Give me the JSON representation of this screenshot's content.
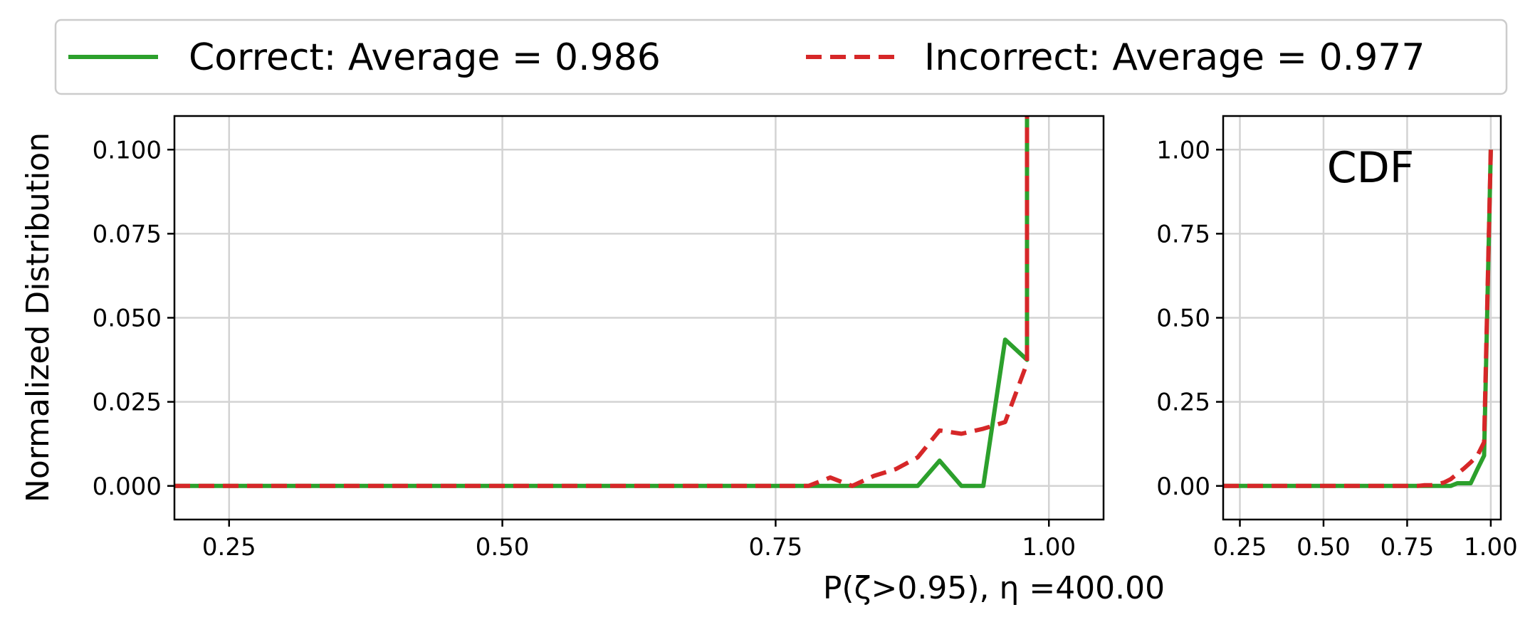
{
  "chart_data": [
    {
      "type": "line",
      "title": "",
      "xlabel": "P(ζ>0.95), η =400.00",
      "ylabel": "Normalized Distribution",
      "xlim": [
        0.2,
        1.05
      ],
      "ylim": [
        -0.01,
        0.11
      ],
      "xticks": [
        0.25,
        0.5,
        0.75,
        1.0
      ],
      "xtick_labels": [
        "0.25",
        "0.50",
        "0.75",
        "1.00"
      ],
      "yticks": [
        0.0,
        0.025,
        0.05,
        0.075,
        0.1
      ],
      "ytick_labels": [
        "0.000",
        "0.025",
        "0.050",
        "0.075",
        "0.100"
      ],
      "grid": true,
      "legend_position": "top",
      "series": [
        {
          "name": "Correct: Average = 0.986",
          "color": "#2ca02c",
          "dash": "solid",
          "x": [
            0.2,
            0.88,
            0.9,
            0.92,
            0.94,
            0.96,
            0.98,
            0.98
          ],
          "y": [
            0.0,
            0.0,
            0.0075,
            0.0,
            0.0,
            0.0435,
            0.0375,
            0.115
          ]
        },
        {
          "name": "Incorrect: Average = 0.977",
          "color": "#d62728",
          "dash": "dashed",
          "x": [
            0.2,
            0.78,
            0.8,
            0.82,
            0.84,
            0.86,
            0.88,
            0.9,
            0.92,
            0.94,
            0.96,
            0.98,
            0.98
          ],
          "y": [
            0.0,
            0.0,
            0.0025,
            0.0,
            0.003,
            0.005,
            0.0085,
            0.0165,
            0.0155,
            0.017,
            0.019,
            0.0365,
            0.115
          ]
        }
      ]
    },
    {
      "type": "line",
      "title": "",
      "annotation": "CDF",
      "xlabel": "",
      "ylabel": "",
      "xlim": [
        0.2,
        1.03
      ],
      "ylim": [
        -0.1,
        1.1
      ],
      "xticks": [
        0.25,
        0.5,
        0.75,
        1.0
      ],
      "xtick_labels": [
        "0.25",
        "0.50",
        "0.75",
        "1.00"
      ],
      "yticks": [
        0.0,
        0.25,
        0.5,
        0.75,
        1.0
      ],
      "ytick_labels": [
        "0.00",
        "0.25",
        "0.50",
        "0.75",
        "1.00"
      ],
      "grid": true,
      "series": [
        {
          "name": "Correct: Average = 0.986",
          "color": "#2ca02c",
          "dash": "solid",
          "x": [
            0.2,
            0.88,
            0.9,
            0.92,
            0.94,
            0.96,
            0.98,
            1.0
          ],
          "y": [
            0.0,
            0.0,
            0.008,
            0.008,
            0.008,
            0.05,
            0.09,
            1.0
          ]
        },
        {
          "name": "Incorrect: Average = 0.977",
          "color": "#d62728",
          "dash": "dashed",
          "x": [
            0.2,
            0.78,
            0.8,
            0.82,
            0.84,
            0.86,
            0.88,
            0.9,
            0.92,
            0.94,
            0.96,
            0.98,
            1.0
          ],
          "y": [
            0.0,
            0.0,
            0.002,
            0.002,
            0.005,
            0.01,
            0.02,
            0.036,
            0.052,
            0.07,
            0.09,
            0.13,
            1.0
          ]
        }
      ]
    }
  ]
}
